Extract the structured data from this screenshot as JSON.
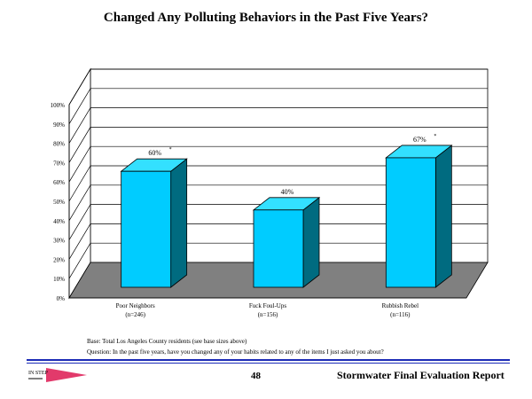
{
  "page": {
    "title": "Changed Any Polluting Behaviors in the Past Five Years?",
    "base_note": "Base:  Total Los  Angeles County residents  (see base sizes above)",
    "question_note": "Question:  In the past five years, have you changed any of your habits related to any of the items I just asked you about?",
    "page_number": "48",
    "report_title": "Stormwater Final Evaluation Report",
    "logo_text": "IN STEP"
  },
  "chart_data": {
    "type": "bar",
    "title": "Changed Any Polluting Behaviors in the Past Five Years?",
    "categories": [
      "Poor Neighbors",
      "Fuck Foul-Ups",
      "Rubbish Rebel"
    ],
    "category_bases": [
      "(n=246)",
      "(n=156)",
      "(n=116)"
    ],
    "values": [
      60,
      40,
      67
    ],
    "value_labels": [
      "60%",
      "40%",
      "67%"
    ],
    "significance_marks": [
      "*",
      "",
      "*"
    ],
    "y_ticks": [
      "0%",
      "10%",
      "20%",
      "30%",
      "40%",
      "50%",
      "60%",
      "70%",
      "80%",
      "90%",
      "100%"
    ],
    "ylim": [
      0,
      100
    ],
    "grid": true,
    "three_d": true,
    "colors": {
      "bar_front": "#00ccff",
      "bar_top": "#33e0ff",
      "bar_side": "#006b80",
      "floor": "#808080",
      "wall": "#ffffff"
    }
  }
}
